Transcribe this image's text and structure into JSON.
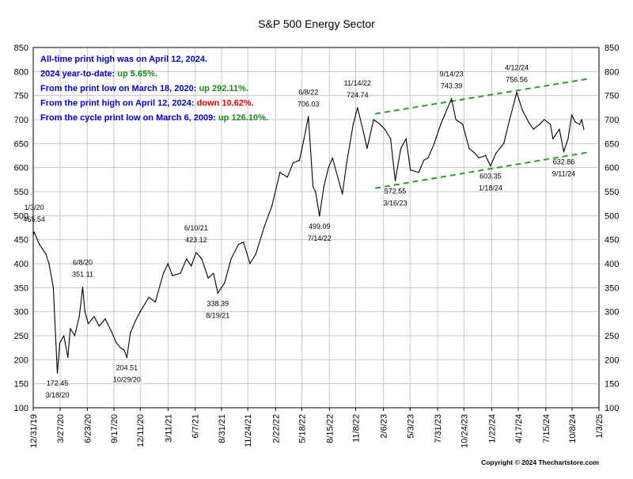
{
  "chart_data": {
    "type": "line",
    "title": "S&P 500 Energy Sector",
    "xlabel": "",
    "ylabel": "",
    "ylim": [
      100,
      850
    ],
    "yticks": [
      100,
      150,
      200,
      250,
      300,
      350,
      400,
      450,
      500,
      550,
      600,
      650,
      700,
      750,
      800,
      850
    ],
    "grid": true,
    "x_tick_labels": [
      "12/31/19",
      "3/27/20",
      "6/23/20",
      "9/17/20",
      "12/11/20",
      "3/11/21",
      "6/7/21",
      "8/31/21",
      "11/24/21",
      "2/22/22",
      "5/18/22",
      "8/15/22",
      "11/8/22",
      "2/6/23",
      "5/3/23",
      "7/31/23",
      "10/24/23",
      "1/22/24",
      "4/17/24",
      "7/15/24",
      "10/8/24",
      "1/3/25"
    ],
    "series": [
      {
        "points": [
          [
            "12/31/19",
            460
          ],
          [
            "1/3/20",
            465.54
          ],
          [
            "1/20/20",
            440
          ],
          [
            "2/10/20",
            420
          ],
          [
            "2/20/20",
            400
          ],
          [
            "3/5/20",
            350
          ],
          [
            "3/10/20",
            280
          ],
          [
            "3/18/20",
            172.45
          ],
          [
            "3/26/20",
            235
          ],
          [
            "4/8/20",
            250
          ],
          [
            "4/21/20",
            205
          ],
          [
            "4/29/20",
            265
          ],
          [
            "5/13/20",
            250
          ],
          [
            "5/28/20",
            290
          ],
          [
            "6/8/20",
            351.11
          ],
          [
            "6/15/20",
            300
          ],
          [
            "6/26/20",
            275
          ],
          [
            "7/15/20",
            290
          ],
          [
            "7/31/20",
            270
          ],
          [
            "8/20/20",
            285
          ],
          [
            "9/8/20",
            260
          ],
          [
            "9/25/20",
            235
          ],
          [
            "10/8/20",
            225
          ],
          [
            "10/20/20",
            220
          ],
          [
            "10/29/20",
            204.51
          ],
          [
            "11/9/20",
            255
          ],
          [
            "11/25/20",
            280
          ],
          [
            "12/11/20",
            300
          ],
          [
            "1/8/21",
            330
          ],
          [
            "1/29/21",
            320
          ],
          [
            "2/24/21",
            380
          ],
          [
            "3/11/21",
            400
          ],
          [
            "3/25/21",
            375
          ],
          [
            "4/20/21",
            380
          ],
          [
            "5/10/21",
            410
          ],
          [
            "5/25/21",
            395
          ],
          [
            "6/10/21",
            423.12
          ],
          [
            "6/28/21",
            410
          ],
          [
            "7/19/21",
            370
          ],
          [
            "8/5/21",
            380
          ],
          [
            "8/19/21",
            338.39
          ],
          [
            "9/10/21",
            360
          ],
          [
            "10/1/21",
            410
          ],
          [
            "10/25/21",
            440
          ],
          [
            "11/10/21",
            445
          ],
          [
            "12/1/21",
            400
          ],
          [
            "12/20/21",
            420
          ],
          [
            "1/18/22",
            480
          ],
          [
            "2/10/22",
            520
          ],
          [
            "3/8/22",
            590
          ],
          [
            "4/1/22",
            580
          ],
          [
            "4/20/22",
            610
          ],
          [
            "5/10/22",
            615
          ],
          [
            "5/25/22",
            660
          ],
          [
            "6/8/22",
            706.03
          ],
          [
            "6/23/22",
            560
          ],
          [
            "7/1/22",
            550
          ],
          [
            "7/14/22",
            499.09
          ],
          [
            "7/28/22",
            560
          ],
          [
            "8/12/22",
            600
          ],
          [
            "8/25/22",
            620
          ],
          [
            "9/26/22",
            545
          ],
          [
            "10/10/22",
            610
          ],
          [
            "10/31/22",
            690
          ],
          [
            "11/14/22",
            724.74
          ],
          [
            "12/1/22",
            680
          ],
          [
            "12/15/22",
            640
          ],
          [
            "1/5/23",
            700
          ],
          [
            "1/26/23",
            690
          ],
          [
            "2/10/23",
            680
          ],
          [
            "3/1/23",
            660
          ],
          [
            "3/16/23",
            572.55
          ],
          [
            "4/3/23",
            640
          ],
          [
            "4/20/23",
            660
          ],
          [
            "5/4/23",
            595
          ],
          [
            "5/31/23",
            590
          ],
          [
            "6/16/23",
            615
          ],
          [
            "6/30/23",
            620
          ],
          [
            "7/20/23",
            650
          ],
          [
            "8/10/23",
            690
          ],
          [
            "9/14/23",
            743.39
          ],
          [
            "9/28/23",
            700
          ],
          [
            "10/20/23",
            690
          ],
          [
            "11/10/23",
            640
          ],
          [
            "11/28/23",
            630
          ],
          [
            "12/12/23",
            620
          ],
          [
            "1/2/24",
            625
          ],
          [
            "1/18/24",
            603.35
          ],
          [
            "2/5/24",
            630
          ],
          [
            "3/1/24",
            650
          ],
          [
            "3/20/24",
            700
          ],
          [
            "4/12/24",
            756.56
          ],
          [
            "4/30/24",
            720
          ],
          [
            "5/20/24",
            695
          ],
          [
            "6/5/24",
            680
          ],
          [
            "6/25/24",
            690
          ],
          [
            "7/10/24",
            700
          ],
          [
            "7/30/24",
            690
          ],
          [
            "8/7/24",
            660
          ],
          [
            "8/28/24",
            680
          ],
          [
            "9/11/24",
            632.86
          ],
          [
            "9/25/24",
            660
          ],
          [
            "10/7/24",
            710
          ],
          [
            "10/18/24",
            695
          ],
          [
            "11/1/24",
            690
          ],
          [
            "11/8/24",
            700
          ],
          [
            "11/15/24",
            680
          ]
        ],
        "color": "#000000"
      }
    ],
    "trendlines": [
      {
        "from": [
          "1/10/23",
          712
        ],
        "to": [
          "12/1/24",
          785
        ],
        "color": "#2e9a2e",
        "style": "dashed"
      },
      {
        "from": [
          "1/10/23",
          557
        ],
        "to": [
          "12/1/24",
          632
        ],
        "color": "#2e9a2e",
        "style": "dashed"
      }
    ],
    "annotations": [
      {
        "lines": [
          "1/3/20",
          "465.54"
        ],
        "at": [
          "1/3/20",
          465.54
        ],
        "pos": "above"
      },
      {
        "lines": [
          "6/8/20",
          "351.11"
        ],
        "at": [
          "6/8/20",
          351.11
        ],
        "pos": "above"
      },
      {
        "lines": [
          "172.45",
          "3/18/20"
        ],
        "at": [
          "3/18/20",
          172.45
        ],
        "pos": "below"
      },
      {
        "lines": [
          "204.51",
          "10/29/20"
        ],
        "at": [
          "10/29/20",
          204.51
        ],
        "pos": "below"
      },
      {
        "lines": [
          "6/10/21",
          "423.12"
        ],
        "at": [
          "6/10/21",
          423.12
        ],
        "pos": "above"
      },
      {
        "lines": [
          "338.39",
          "8/19/21"
        ],
        "at": [
          "8/19/21",
          338.39
        ],
        "pos": "below"
      },
      {
        "lines": [
          "6/8/22",
          "706.03"
        ],
        "at": [
          "6/8/22",
          706.03
        ],
        "pos": "above"
      },
      {
        "lines": [
          "499.09",
          "7/14/22"
        ],
        "at": [
          "7/14/22",
          499.09
        ],
        "pos": "below"
      },
      {
        "lines": [
          "11/14/22",
          "724.74"
        ],
        "at": [
          "11/14/22",
          724.74
        ],
        "pos": "above"
      },
      {
        "lines": [
          "572.55",
          "3/16/23"
        ],
        "at": [
          "3/16/23",
          572.55
        ],
        "pos": "below"
      },
      {
        "lines": [
          "9/14/23",
          "743.39"
        ],
        "at": [
          "9/14/23",
          743.39
        ],
        "pos": "above"
      },
      {
        "lines": [
          "603.35",
          "1/18/24"
        ],
        "at": [
          "1/18/24",
          603.35
        ],
        "pos": "below"
      },
      {
        "lines": [
          "4/12/24",
          "756.56"
        ],
        "at": [
          "4/12/24",
          756.56
        ],
        "pos": "above"
      },
      {
        "lines": [
          "632.86",
          "9/11/24"
        ],
        "at": [
          "9/11/24",
          632.86
        ],
        "pos": "below"
      }
    ]
  },
  "info_box": [
    {
      "parts": [
        {
          "text": "All-time print high was on April 12, 2024.",
          "color": "#0000cc"
        }
      ]
    },
    {
      "parts": [
        {
          "text": "2024 year-to-date:  ",
          "color": "#0000cc"
        },
        {
          "text": "up 5.65%.",
          "color": "#1a8a1a"
        }
      ]
    },
    {
      "parts": [
        {
          "text": "From the print low on March 18, 2020:  ",
          "color": "#0000cc"
        },
        {
          "text": "up 292.11%.",
          "color": "#1a8a1a"
        }
      ]
    },
    {
      "parts": [
        {
          "text": "From the print high on April 12, 2024:  ",
          "color": "#0000cc"
        },
        {
          "text": "down 10.62%.",
          "color": "#e00000"
        }
      ]
    },
    {
      "parts": [
        {
          "text": "From the cycle print low on March 6, 2009:  ",
          "color": "#0000cc"
        },
        {
          "text": "up 126.10%.",
          "color": "#1a8a1a"
        }
      ]
    }
  ],
  "copyright": "Copyright © 2024 Thechartstore.com",
  "colors": {
    "background": "#ffffff",
    "plot_background": "#ffffff",
    "grid": "#c8c8c8",
    "line": "#000000",
    "trendline": "#2e9a2e"
  }
}
